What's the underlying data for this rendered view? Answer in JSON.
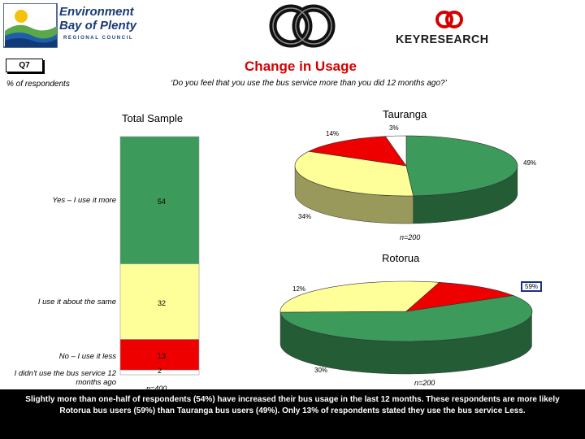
{
  "header": {
    "org_name_line1": "Environment",
    "org_name_line2": "Bay of Plenty",
    "org_name_line3": "REGIONAL COUNCIL",
    "research_brand": "KEYRESEARCH"
  },
  "question_code": "Q7",
  "pct_label": "% of respondents",
  "title": "Change in Usage",
  "question_text": "‘Do you feel that you use the bus service more than you did 12 months ago?’",
  "colors": {
    "more": "#3c9a5a",
    "same": "#ffff99",
    "less": "#ee0000",
    "not_used": "#ffffff",
    "title_red": "#d60000"
  },
  "chart_data": [
    {
      "type": "bar",
      "title": "Total Sample",
      "stacked": true,
      "categories": [
        "Yes – I use it more",
        "I use it about the same",
        "No – I use it less",
        "I didn't use the bus service 12 months ago"
      ],
      "values": [
        54,
        32,
        13,
        2
      ],
      "value_labels": [
        "54",
        "32",
        "13",
        "2"
      ],
      "n_label": "n=400"
    },
    {
      "type": "pie",
      "title": "Tauranga",
      "categories": [
        "Yes – I use it more",
        "I use it about the same",
        "No – I use it less",
        "I didn't use the bus service 12 months ago"
      ],
      "values": [
        49,
        34,
        14,
        3
      ],
      "value_labels": [
        "49%",
        "34%",
        "14%",
        "3%"
      ],
      "n_label": "n=200"
    },
    {
      "type": "pie",
      "title": "Rotorua",
      "categories": [
        "Yes – I use it more",
        "I use it about the same",
        "No – I use it less"
      ],
      "values": [
        59,
        30,
        12
      ],
      "value_labels": [
        "59%",
        "30%",
        "12%"
      ],
      "n_label": "n=200"
    }
  ],
  "footer_text": "Slightly more than one-half of respondents (54%) have increased their bus usage in the last 12 months. These respondents are more likely Rotorua bus users (59%) than Tauranga bus users (49%). Only 13% of respondents stated they use the bus service Less."
}
